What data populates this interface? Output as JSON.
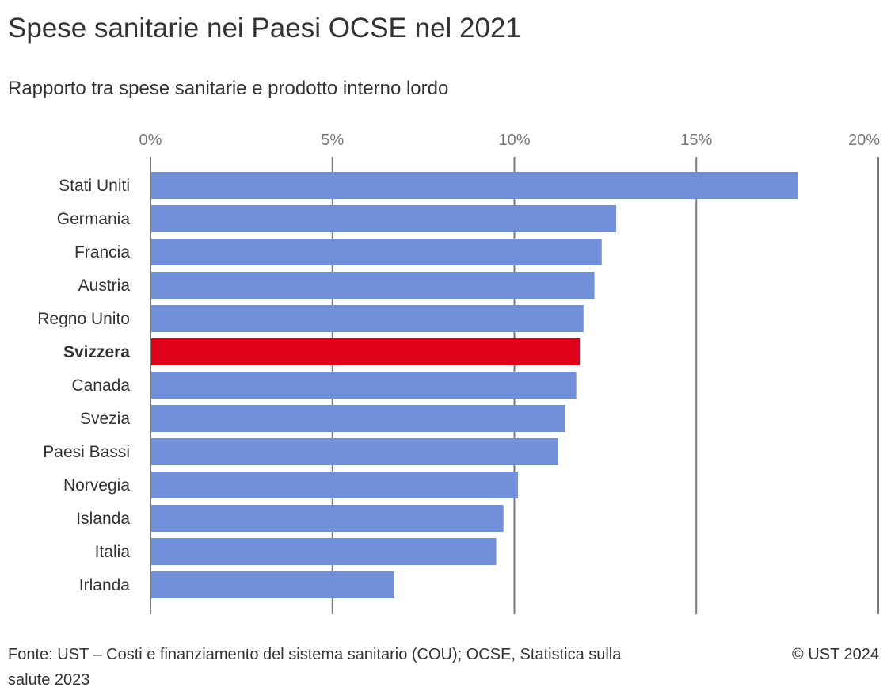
{
  "chart_data": {
    "type": "bar",
    "orientation": "horizontal",
    "title": "Spese sanitarie nei Paesi OCSE nel 2021",
    "subtitle": "Rapporto tra spese sanitarie e prodotto interno lordo",
    "categories": [
      "Stati Uniti",
      "Germania",
      "Francia",
      "Austria",
      "Regno Unito",
      "Svizzera",
      "Canada",
      "Svezia",
      "Paesi Bassi",
      "Norvegia",
      "Islanda",
      "Italia",
      "Irlanda"
    ],
    "values": [
      17.8,
      12.8,
      12.4,
      12.2,
      11.9,
      11.8,
      11.7,
      11.4,
      11.2,
      10.1,
      9.7,
      9.5,
      6.7
    ],
    "highlight": "Svizzera",
    "xlim": [
      0,
      20
    ],
    "ticks": [
      0,
      5,
      10,
      15,
      20
    ],
    "tick_labels": [
      "0%",
      "5%",
      "10%",
      "15%",
      "20%"
    ],
    "grid": true,
    "colors": {
      "bar": "#728fd9",
      "highlight": "#df0019",
      "grid": "#7a7a7a"
    }
  },
  "footer": {
    "source": "Fonte: UST – Costi e finanziamento del sistema sanitario (COU); OCSE, Statistica sulla salute 2023",
    "copyright": "© UST 2024"
  }
}
